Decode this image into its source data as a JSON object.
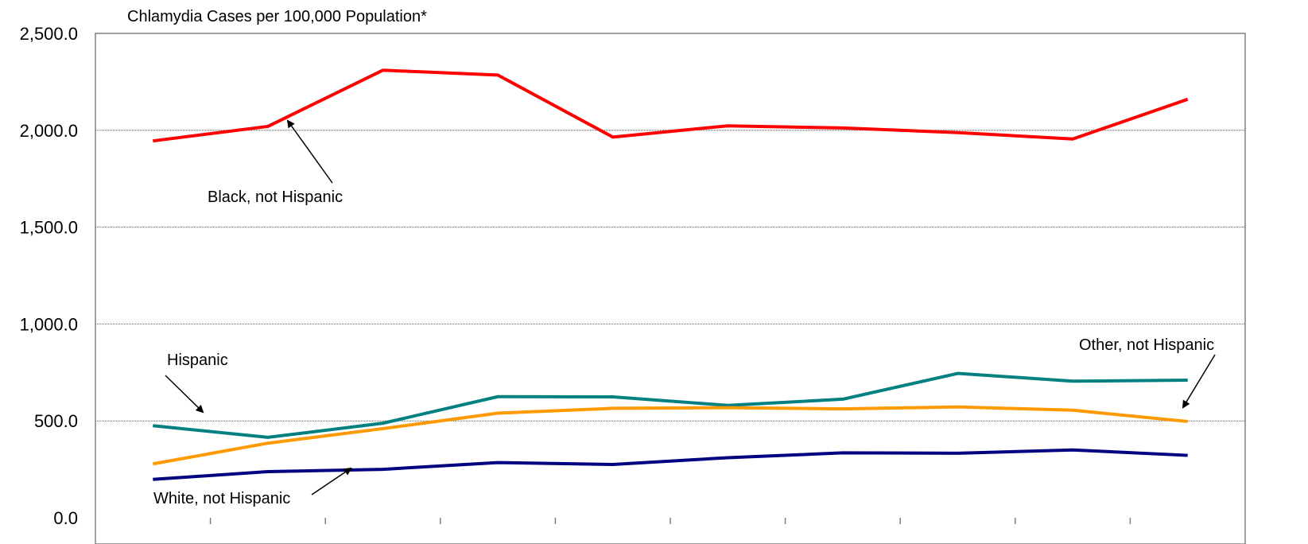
{
  "chart_data": {
    "type": "line",
    "title": "Chlamydia Cases per 100,000 Population*",
    "xlabel": "",
    "ylabel": "",
    "ylim": [
      0,
      2500
    ],
    "yticks": [
      "0.0",
      "500.0",
      "1,000.0",
      "1,500.0",
      "2,000.0",
      "2,500.0"
    ],
    "ytick_values": [
      0,
      500,
      1000,
      1500,
      2000,
      2500
    ],
    "grid": "horizontal dotted",
    "n_points": 10,
    "series": [
      {
        "name": "Black, not Hispanic",
        "color": "#ff0000",
        "values": [
          1945,
          2020,
          2310,
          2285,
          1965,
          2023,
          2012,
          1988,
          1955,
          2160
        ]
      },
      {
        "name": "Hispanic",
        "color": "#008080",
        "values": [
          475,
          415,
          488,
          625,
          624,
          580,
          612,
          745,
          705,
          710
        ]
      },
      {
        "name": "Other, not Hispanic",
        "color": "#ff9900",
        "values": [
          278,
          385,
          460,
          540,
          565,
          568,
          562,
          572,
          555,
          497
        ]
      },
      {
        "name": "White, not Hispanic",
        "color": "#000080",
        "values": [
          198,
          238,
          250,
          285,
          275,
          310,
          335,
          333,
          350,
          322
        ]
      }
    ],
    "annotations": {
      "black": "Black, not Hispanic",
      "hispanic": "Hispanic",
      "other": "Other, not Hispanic",
      "white": "White, not Hispanic"
    }
  }
}
